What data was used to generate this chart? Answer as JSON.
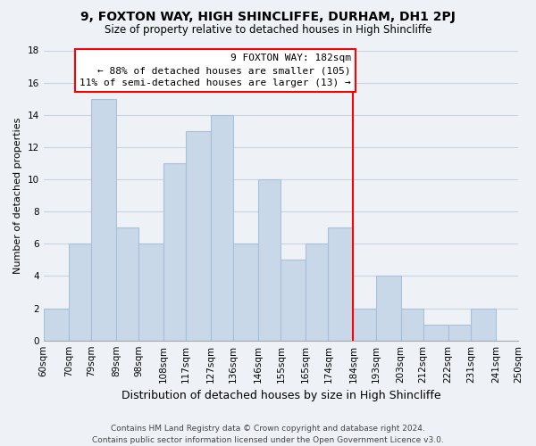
{
  "title": "9, FOXTON WAY, HIGH SHINCLIFFE, DURHAM, DH1 2PJ",
  "subtitle": "Size of property relative to detached houses in High Shincliffe",
  "xlabel": "Distribution of detached houses by size in High Shincliffe",
  "ylabel": "Number of detached properties",
  "footer_line1": "Contains HM Land Registry data © Crown copyright and database right 2024.",
  "footer_line2": "Contains public sector information licensed under the Open Government Licence v3.0.",
  "bin_edges": [
    60,
    70,
    79,
    89,
    98,
    108,
    117,
    127,
    136,
    146,
    155,
    165,
    174,
    184,
    193,
    203,
    212,
    222,
    231,
    241,
    250
  ],
  "bin_labels": [
    "60sqm",
    "70sqm",
    "79sqm",
    "89sqm",
    "98sqm",
    "108sqm",
    "117sqm",
    "127sqm",
    "136sqm",
    "146sqm",
    "155sqm",
    "165sqm",
    "174sqm",
    "184sqm",
    "193sqm",
    "203sqm",
    "212sqm",
    "222sqm",
    "231sqm",
    "241sqm",
    "250sqm"
  ],
  "bar_values": [
    2,
    6,
    15,
    7,
    6,
    11,
    13,
    14,
    6,
    10,
    5,
    6,
    7,
    2,
    4,
    2,
    1,
    1,
    2,
    0
  ],
  "bar_color": "#c8d8e8",
  "bar_edge_color": "#a8c0d8",
  "vline_position": 184,
  "vline_color": "red",
  "annotation_title": "9 FOXTON WAY: 182sqm",
  "annotation_line1": "← 88% of detached houses are smaller (105)",
  "annotation_line2": "11% of semi-detached houses are larger (13) →",
  "annotation_box_color": "white",
  "annotation_box_edge_color": "red",
  "ylim": [
    0,
    18
  ],
  "yticks": [
    0,
    2,
    4,
    6,
    8,
    10,
    12,
    14,
    16,
    18
  ],
  "grid_color": "#c8d4e0",
  "background_color": "#eef2f7",
  "title_fontsize": 10,
  "subtitle_fontsize": 8.5,
  "ylabel_fontsize": 8,
  "xlabel_fontsize": 9,
  "tick_fontsize": 7.5,
  "footer_fontsize": 6.5,
  "annotation_fontsize": 8
}
